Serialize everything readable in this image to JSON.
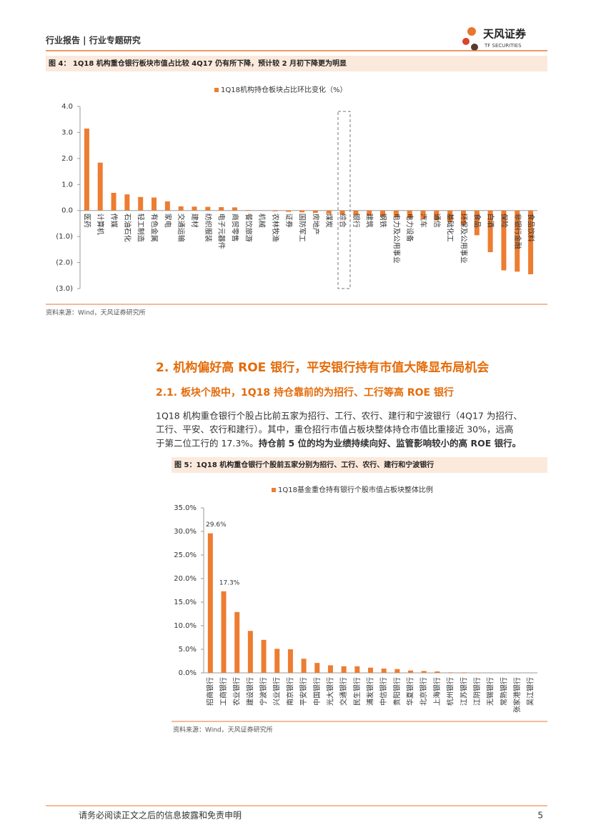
{
  "header": {
    "title": "行业报告 | 行业专题研究",
    "logo": "天风证券",
    "logo_en": "TF SECURITIES"
  },
  "figure4": {
    "caption": "图 4： 1Q18 机构重仓银行板块市值占比较 4Q17 仍有所下降，预计较 2 月初下降更为明显",
    "source": "资料来源：Wind，天风证券研究所"
  },
  "section": {
    "heading": "2. 机构偏好高 ROE 银行，平安银行持有市值大降显布局机会",
    "subheading": "2.1. 板块个股中，1Q18 持仓靠前的为招行、工行等高 ROE 银行",
    "lines": [
      "1Q18 机构重仓银行个股占比前五家为招行、工行、农行、建行和宁波银行（4Q17 为招行、",
      "工行、平安、农行和建行）。其中，重仓招行市值占板块整体持仓市值比重接近 30%，远高",
      "于第二位工行的 17.3%。"
    ],
    "emphasis": "持仓前 5 位的均为业绩持续向好、监管影响较小的高 ROE 银行。"
  },
  "figure5": {
    "caption": "图 5：1Q18 机构重仓银行个股前五家分别为招行、工行、农行、建行和宁波银行",
    "source": "资料来源：Wind，天风证券研究所"
  },
  "footer": {
    "disclaimer": "请务必阅读正文之后的信息披露和免责申明",
    "page": "5"
  },
  "chart_data": [
    {
      "type": "bar",
      "series": [
        {
          "name": "1Q18机构持仓板块占比环比变化（%）",
          "color": "#ed7d31",
          "values": [
            3.15,
            1.84,
            0.68,
            0.62,
            0.52,
            0.5,
            0.35,
            0.16,
            0.15,
            0.14,
            0.13,
            0.12,
            0.02,
            0.01,
            -0.03,
            -0.05,
            -0.07,
            -0.09,
            -0.12,
            -0.15,
            -0.17,
            -0.2,
            -0.22,
            -0.25,
            -0.3,
            -0.32,
            -0.38,
            -0.45,
            -0.55,
            -0.95,
            -1.6,
            -2.3,
            -2.35,
            -2.45
          ]
        }
      ],
      "categories": [
        "医药",
        "计算机",
        "传媒",
        "石油石化",
        "轻工制造",
        "有色金属",
        "家电",
        "交通运输",
        "建材",
        "纺织服装",
        "电子元器件",
        "商贸零售",
        "餐饮旅游",
        "机械",
        "农林牧渔",
        "证券",
        "国防军工",
        "房地产",
        "煤炭",
        "综合",
        "银行",
        "建筑",
        "钢铁",
        "电力及公用事业",
        "电力设备",
        "汽车",
        "通信",
        "基础化工",
        "环保及公用事业",
        "食品",
        "白酒",
        "保险",
        "非银行金融",
        "食品饮料"
      ],
      "ylim": [
        -3,
        4
      ],
      "yticks": [
        {
          "value": 4,
          "label": "4.0"
        },
        {
          "value": 3,
          "label": "3.0"
        },
        {
          "value": 2,
          "label": "2.0"
        },
        {
          "value": 1,
          "label": "1.0"
        },
        {
          "value": 0,
          "label": "0.0"
        },
        {
          "value": -1,
          "label": "(1.0)"
        },
        {
          "value": -2,
          "label": "(2.0)"
        },
        {
          "value": -3,
          "label": "(3.0)"
        }
      ]
    },
    {
      "type": "bar",
      "series": [
        {
          "name": "1Q18基金重仓持有银行个股市值占板块整体比例",
          "color": "#ed7d31",
          "values": [
            29.6,
            17.3,
            12.9,
            8.9,
            7.0,
            5.1,
            5.0,
            3.0,
            2.1,
            1.6,
            1.4,
            1.4,
            1.1,
            0.9,
            0.8,
            0.5,
            0.4,
            0.3,
            0.1,
            0.1,
            0.05,
            0.03,
            0.02,
            0.02,
            0.01
          ],
          "value_labels": [
            "29.6%",
            "17.3%",
            null,
            null,
            null,
            null,
            null,
            null,
            null,
            null,
            null,
            null,
            null,
            null,
            null,
            null,
            null,
            null,
            null,
            null,
            null,
            null,
            null,
            null,
            null
          ]
        }
      ],
      "categories": [
        "招商银行",
        "工商银行",
        "农业银行",
        "建设银行",
        "宁波银行",
        "兴业银行",
        "南京银行",
        "平安银行",
        "中国银行",
        "光大银行",
        "交通银行",
        "民生银行",
        "浦发银行",
        "中信银行",
        "贵阳银行",
        "华夏银行",
        "北京银行",
        "上海银行",
        "杭州银行",
        "江苏银行",
        "江阴银行",
        "无锡银行",
        "常熟银行",
        "张家港银行",
        "吴江银行"
      ],
      "ylim": [
        0,
        35
      ],
      "yticks": [
        {
          "value": 0,
          "label": "0.0%"
        },
        {
          "value": 5,
          "label": "5.0%"
        },
        {
          "value": 10,
          "label": "10.0%"
        },
        {
          "value": 15,
          "label": "15.0%"
        },
        {
          "value": 20,
          "label": "20.0%"
        },
        {
          "value": 25,
          "label": "25.0%"
        },
        {
          "value": 30,
          "label": "30.0%"
        },
        {
          "value": 35,
          "label": "35.0%"
        }
      ]
    }
  ]
}
